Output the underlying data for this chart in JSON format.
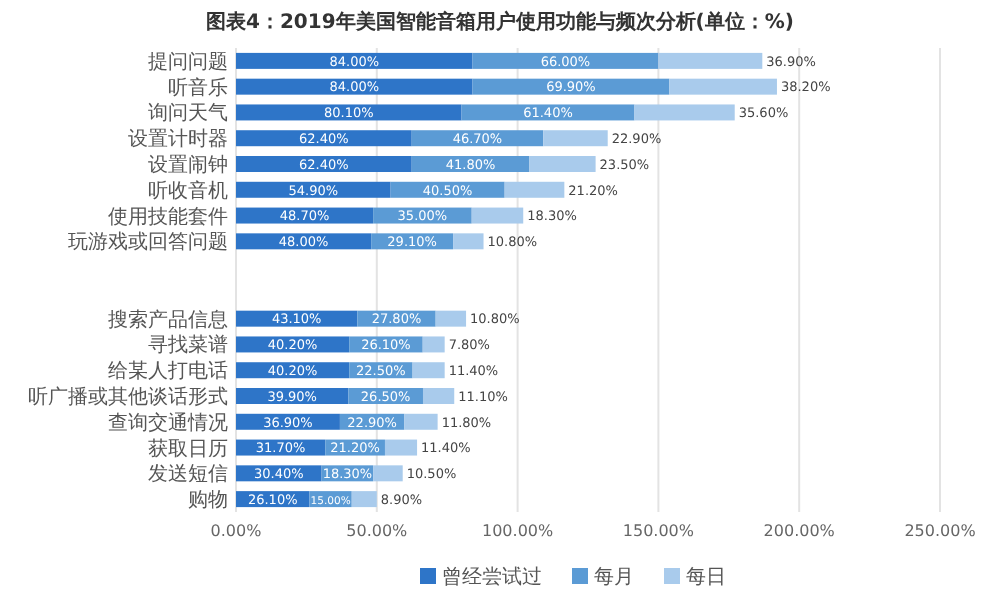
{
  "chart_data": {
    "type": "bar",
    "orientation": "horizontal",
    "stacked": true,
    "title": "图表4：2019年美国智能音箱用户使用功能与频次分析(单位：%)",
    "categories": [
      "提问问题",
      "听音乐",
      "询问天气",
      "设置计时器",
      "设置闹钟",
      "听收音机",
      "使用技能套件",
      "玩游戏或回答问题",
      null,
      null,
      "搜索产品信息",
      "寻找菜谱",
      "给某人打电话",
      "听广播或其他谈话形式",
      "查询交通情况",
      "获取日历",
      "发送短信",
      "购物"
    ],
    "series": [
      {
        "name": "曾经尝试过",
        "color": "#2e75c8",
        "values": [
          84.0,
          84.0,
          80.1,
          62.4,
          62.4,
          54.9,
          48.7,
          48.0,
          null,
          null,
          43.1,
          40.2,
          40.2,
          39.9,
          36.9,
          31.7,
          30.4,
          26.1
        ],
        "value_labels": [
          "84.00%",
          "84.00%",
          "80.10%",
          "62.40%",
          "62.40%",
          "54.90%",
          "48.70%",
          "48.00%",
          null,
          null,
          "43.10%",
          "40.20%",
          "40.20%",
          "39.90%",
          "36.90%",
          "31.70%",
          "30.40%",
          "26.10%"
        ]
      },
      {
        "name": "每月",
        "color": "#5b9bd5",
        "values": [
          66.0,
          69.9,
          61.4,
          46.7,
          41.8,
          40.5,
          35.0,
          29.1,
          null,
          null,
          27.8,
          26.1,
          22.5,
          26.5,
          22.9,
          21.2,
          18.3,
          15.0
        ],
        "value_labels": [
          "66.00%",
          "69.90%",
          "61.40%",
          "46.70%",
          "41.80%",
          "40.50%",
          "35.00%",
          "29.10%",
          null,
          null,
          "27.80%",
          "26.10%",
          "22.50%",
          "26.50%",
          "22.90%",
          "21.20%",
          "18.30%",
          "15.00%"
        ]
      },
      {
        "name": "每日",
        "color": "#a9cbec",
        "values": [
          36.9,
          38.2,
          35.6,
          22.9,
          23.5,
          21.2,
          18.3,
          10.8,
          null,
          null,
          10.8,
          7.8,
          11.4,
          11.1,
          11.8,
          11.4,
          10.5,
          8.9
        ],
        "value_labels": [
          "36.90%",
          "38.20%",
          "35.60%",
          "22.90%",
          "23.50%",
          "21.20%",
          "18.30%",
          "10.80%",
          null,
          null,
          "10.80%",
          "7.80%",
          "11.40%",
          "11.10%",
          "11.80%",
          "11.40%",
          "10.50%",
          "8.90%"
        ]
      }
    ],
    "xlim": [
      0,
      250
    ],
    "xticks": [
      {
        "value": 0,
        "label": "0.00%"
      },
      {
        "value": 50,
        "label": "50.00%"
      },
      {
        "value": 100,
        "label": "100.00%"
      },
      {
        "value": 150,
        "label": "150.00%"
      },
      {
        "value": 200,
        "label": "200.00%"
      },
      {
        "value": 250,
        "label": "250.00%"
      }
    ],
    "grid": "x",
    "legend": "bottom"
  }
}
